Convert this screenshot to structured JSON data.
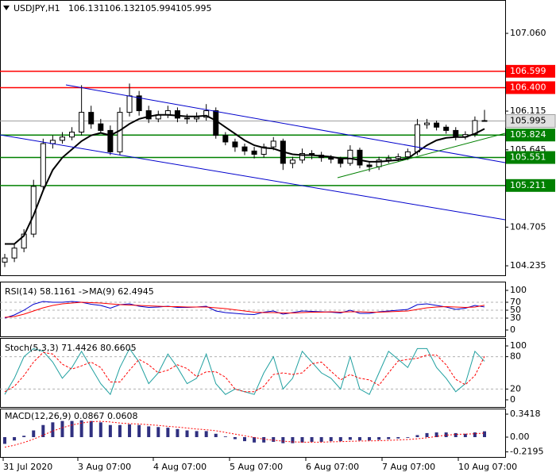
{
  "chart_data": [
    {
      "type": "candlestick",
      "title": "USDJPY,H1",
      "header_values": [
        106.131,
        106.132,
        105.994,
        105.995
      ],
      "open": [
        104.28,
        104.33,
        104.45,
        104.62,
        105.2,
        105.72,
        105.76,
        105.8,
        105.86,
        106.1,
        105.96,
        105.88,
        105.62,
        106.1,
        106.3,
        106.12,
        106.02,
        106.07,
        106.12,
        106.03,
        106.02,
        106.04,
        106.12,
        105.82,
        105.74,
        105.68,
        105.63,
        105.59,
        105.68,
        105.75,
        105.48,
        105.52,
        105.6,
        105.58,
        105.55,
        105.53,
        105.48,
        105.64,
        105.46,
        105.44,
        105.52,
        105.54,
        105.56,
        105.62,
        105.95,
        105.97,
        105.92,
        105.88,
        105.8,
        105.83,
        106.0
      ],
      "high": [
        104.38,
        104.5,
        104.68,
        105.28,
        105.78,
        105.82,
        105.86,
        105.92,
        106.43,
        106.18,
        106.02,
        105.94,
        106.16,
        106.45,
        106.36,
        106.18,
        106.12,
        106.18,
        106.16,
        106.08,
        106.1,
        106.2,
        106.16,
        105.86,
        105.78,
        105.72,
        105.68,
        105.72,
        105.8,
        105.78,
        105.56,
        105.66,
        105.64,
        105.62,
        105.58,
        105.56,
        105.7,
        105.67,
        105.5,
        105.56,
        105.58,
        105.6,
        105.66,
        106.02,
        106.02,
        106.0,
        105.95,
        105.92,
        105.87,
        106.05,
        106.13
      ],
      "low": [
        104.22,
        104.28,
        104.4,
        104.58,
        105.15,
        105.66,
        105.72,
        105.76,
        105.82,
        105.9,
        105.84,
        105.58,
        105.58,
        106.05,
        106.06,
        105.97,
        105.98,
        106.03,
        105.98,
        105.96,
        105.98,
        106.0,
        105.78,
        105.7,
        105.62,
        105.58,
        105.54,
        105.55,
        105.64,
        105.4,
        105.42,
        105.48,
        105.53,
        105.5,
        105.48,
        105.43,
        105.45,
        105.42,
        105.38,
        105.4,
        105.48,
        105.5,
        105.52,
        105.58,
        105.9,
        105.88,
        105.84,
        105.76,
        105.77,
        105.8,
        105.99
      ],
      "close": [
        104.33,
        104.45,
        104.62,
        105.2,
        105.72,
        105.76,
        105.8,
        105.86,
        106.1,
        105.96,
        105.88,
        105.62,
        106.1,
        106.3,
        106.12,
        106.02,
        106.07,
        106.12,
        106.03,
        106.02,
        106.04,
        106.12,
        105.82,
        105.74,
        105.68,
        105.63,
        105.59,
        105.68,
        105.75,
        105.48,
        105.52,
        105.6,
        105.58,
        105.55,
        105.53,
        105.48,
        105.64,
        105.46,
        105.44,
        105.52,
        105.54,
        105.56,
        105.62,
        105.95,
        105.97,
        105.92,
        105.88,
        105.8,
        105.83,
        106.0,
        105.995
      ],
      "ma": {
        "color": "#000000",
        "values": [
          104.5,
          104.5,
          104.6,
          104.85,
          105.15,
          105.4,
          105.55,
          105.65,
          105.75,
          105.82,
          105.85,
          105.82,
          105.88,
          105.96,
          106.02,
          106.05,
          106.07,
          106.07,
          106.06,
          106.05,
          106.05,
          106.06,
          106.0,
          105.92,
          105.84,
          105.76,
          105.7,
          105.67,
          105.66,
          105.62,
          105.59,
          105.58,
          105.58,
          105.57,
          105.56,
          105.54,
          105.54,
          105.52,
          105.5,
          105.5,
          105.51,
          105.52,
          105.54,
          105.62,
          105.7,
          105.76,
          105.79,
          105.8,
          105.8,
          105.84,
          105.9
        ]
      },
      "ylim": [
        104.139,
        107.446
      ],
      "yticks": [
        {
          "value": 107.06,
          "label": "107.060"
        },
        106.115,
        105.645,
        104.705,
        104.235
      ],
      "levels": [
        {
          "value": 106.599,
          "color": "#ff0000"
        },
        {
          "value": 106.4,
          "label": "106.400",
          "color": "#ff0000"
        },
        {
          "value": 105.824,
          "color": "#008000"
        },
        {
          "value": 105.551,
          "color": "#008000"
        },
        {
          "value": 105.211,
          "color": "#008000"
        }
      ],
      "last": 105.995
    },
    {
      "type": "oscillator",
      "title": "RSI(14) 58.1161 ->MA(9) 62.4945",
      "series": [
        {
          "color": "#0000cc",
          "values": [
            30,
            38,
            50,
            65,
            72,
            70,
            70,
            72,
            70,
            65,
            62,
            55,
            64,
            66,
            60,
            57,
            58,
            60,
            57,
            57,
            58,
            60,
            48,
            44,
            42,
            40,
            39,
            45,
            48,
            40,
            44,
            48,
            47,
            46,
            45,
            43,
            50,
            42,
            42,
            46,
            48,
            50,
            52,
            64,
            66,
            62,
            58,
            52,
            55,
            62,
            58.1161
          ]
        },
        {
          "color": "#ff0000",
          "values": [
            32,
            34,
            40,
            48,
            56,
            62,
            66,
            68,
            70,
            69,
            68,
            66,
            64,
            63,
            62,
            61,
            60,
            59,
            59,
            58,
            58,
            58,
            56,
            54,
            51,
            48,
            45,
            44,
            44,
            43,
            43,
            44,
            45,
            45,
            46,
            45,
            46,
            46,
            45,
            45,
            46,
            47,
            48,
            52,
            56,
            58,
            59,
            58,
            57,
            58,
            62.4945
          ]
        }
      ],
      "ylim": [
        -14,
        118
      ],
      "yticks": [
        100,
        70,
        50,
        30,
        0
      ],
      "levels": [
        70,
        50,
        30
      ]
    },
    {
      "type": "oscillator",
      "title": "Stoch(5,3,3) 71.4426 80.6605",
      "series": [
        {
          "color": "#20a0a0",
          "values": [
            10,
            40,
            80,
            95,
            90,
            70,
            40,
            60,
            90,
            60,
            30,
            10,
            60,
            95,
            70,
            30,
            50,
            85,
            60,
            30,
            40,
            85,
            30,
            10,
            20,
            15,
            10,
            50,
            80,
            20,
            40,
            90,
            70,
            50,
            40,
            20,
            80,
            20,
            10,
            50,
            90,
            75,
            60,
            95,
            95,
            60,
            40,
            15,
            30,
            90,
            71.4426
          ]
        },
        {
          "color": "#ff0000",
          "dashed": true,
          "values": [
            15,
            25,
            45,
            70,
            88,
            85,
            66,
            57,
            63,
            70,
            60,
            33,
            33,
            55,
            75,
            65,
            50,
            55,
            65,
            58,
            43,
            52,
            52,
            42,
            20,
            15,
            15,
            25,
            47,
            50,
            47,
            50,
            67,
            70,
            53,
            37,
            47,
            40,
            37,
            27,
            50,
            72,
            75,
            77,
            83,
            83,
            65,
            38,
            28,
            45,
            80.6605
          ]
        }
      ],
      "ylim": [
        -11.8,
        111.8
      ],
      "yticks": [
        100,
        80,
        20,
        0
      ],
      "levels": [
        80,
        20
      ]
    },
    {
      "type": "macd",
      "title": "MACD(12,26,9) 0.0867 0.0608",
      "histogram": {
        "color": "#303080",
        "values": [
          -0.1,
          -0.05,
          0.02,
          0.1,
          0.18,
          0.22,
          0.24,
          0.24,
          0.25,
          0.24,
          0.22,
          0.18,
          0.18,
          0.19,
          0.18,
          0.16,
          0.15,
          0.14,
          0.12,
          0.1,
          0.09,
          0.09,
          0.05,
          0.01,
          -0.03,
          -0.06,
          -0.08,
          -0.08,
          -0.07,
          -0.09,
          -0.09,
          -0.08,
          -0.07,
          -0.07,
          -0.06,
          -0.06,
          -0.04,
          -0.05,
          -0.05,
          -0.04,
          -0.03,
          -0.02,
          -0.01,
          0.03,
          0.06,
          0.07,
          0.07,
          0.06,
          0.05,
          0.07,
          0.0867
        ]
      },
      "signal": {
        "color": "#ff0000",
        "values": [
          -0.15,
          -0.12,
          -0.08,
          -0.03,
          0.03,
          0.09,
          0.14,
          0.18,
          0.21,
          0.23,
          0.235,
          0.225,
          0.21,
          0.2,
          0.195,
          0.185,
          0.175,
          0.16,
          0.15,
          0.135,
          0.12,
          0.11,
          0.095,
          0.07,
          0.045,
          0.02,
          -0.005,
          -0.03,
          -0.045,
          -0.06,
          -0.07,
          -0.075,
          -0.075,
          -0.075,
          -0.07,
          -0.067,
          -0.062,
          -0.058,
          -0.056,
          -0.053,
          -0.048,
          -0.042,
          -0.035,
          -0.025,
          -0.01,
          0.01,
          0.03,
          0.04,
          0.045,
          0.05,
          0.0608
        ]
      },
      "ylim": [
        -0.283,
        0.401
      ],
      "yticks": [
        0.3418,
        {
          "value": 0,
          "label": "0.00"
        },
        -0.2195
      ],
      "time_labels": [
        "31 Jul 2020",
        "3 Aug 07:00",
        "4 Aug 07:00",
        "5 Aug 07:00",
        "6 Aug 07:00",
        "7 Aug 07:00",
        "10 Aug 07:00"
      ]
    }
  ]
}
